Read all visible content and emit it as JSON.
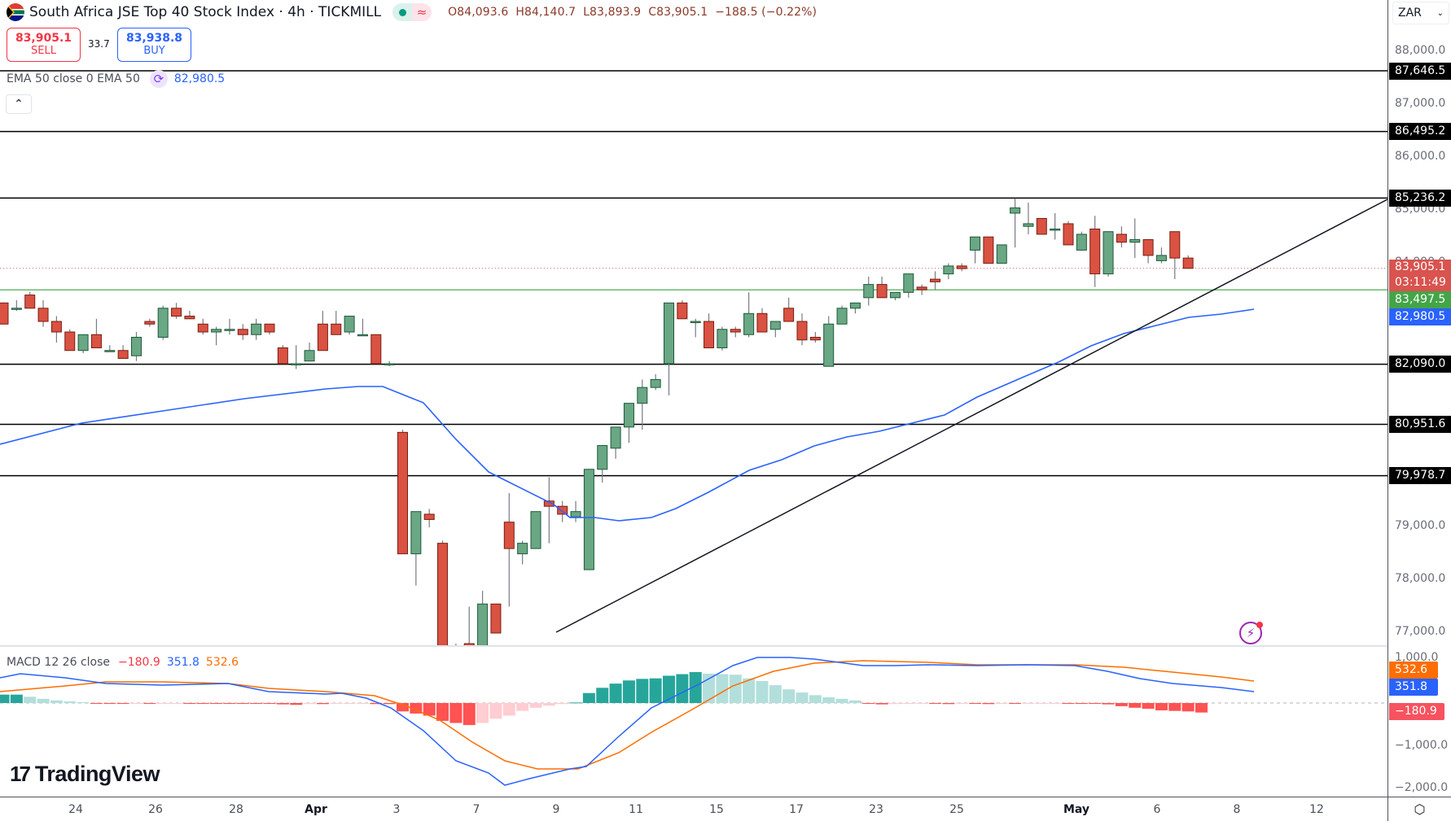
{
  "header": {
    "title": "South Africa JSE Top 40 Stock Index · 4h · TICKMILL",
    "flag_icon": "south-africa-flag-icon",
    "status_icons": [
      "market-open-dot-icon",
      "delayed-data-icon"
    ],
    "ohlc": {
      "open": "O84,093.6",
      "high": "H84,140.7",
      "low": "L83,893.9",
      "close": "C83,905.1",
      "change": "−188.5 (−0.22%)"
    }
  },
  "trade": {
    "sell_price": "83,905.1",
    "sell_label": "SELL",
    "spread": "33.7",
    "buy_price": "83,938.8",
    "buy_label": "BUY"
  },
  "ema_legend": {
    "label": "EMA 50 close 0 EMA 50",
    "icon": "refresh-cycle-icon",
    "value": "82,980.5"
  },
  "collapse_button": {
    "icon": "chevron-up-icon",
    "label": "^"
  },
  "macd_legend": {
    "label": "MACD 12 26 close",
    "histogram": "−180.9",
    "macd": "351.8",
    "signal": "532.6"
  },
  "logo": {
    "mark": "17",
    "text": "TradingView"
  },
  "price_axis": {
    "currency": "ZAR",
    "ticks": [
      "88,000.0",
      "87,000.0",
      "86,000.0",
      "85,000.0",
      "84,000.0",
      "79,000.0",
      "78,000.0",
      "77,000.0"
    ],
    "level_tags": [
      "87,646.5",
      "86,495.2",
      "85,236.2",
      "82,090.0",
      "80,951.6",
      "79,978.7"
    ],
    "last_price": "83,905.1",
    "countdown": "03:11:49",
    "green_level": "83,497.5",
    "ema_tag": "82,980.5",
    "macd_ticks": [
      "1,000.0",
      "0.0",
      "−1,000.0",
      "−2,000.0"
    ],
    "macd_signal_tag": "532.6",
    "macd_line_tag": "351.8",
    "macd_hist_tag": "−180.9"
  },
  "time_axis": {
    "labels": [
      "24",
      "26",
      "28",
      "Apr",
      "3",
      "7",
      "9",
      "11",
      "15",
      "17",
      "23",
      "25",
      "May",
      "6",
      "8",
      "12"
    ]
  },
  "colors": {
    "bull": "#6aa784",
    "bear": "#d95242",
    "ema": "#2962ff",
    "macd_line": "#2962ff",
    "signal_line": "#ff6d00",
    "hist_pos_strong": "#26a69a",
    "hist_pos_weak": "#b2dfdb",
    "hist_neg_strong": "#ff5252",
    "hist_neg_weak": "#ffcdd2"
  },
  "chart_data": {
    "type": "candlestick",
    "title": "South Africa JSE Top 40 Stock Index · 4h · TICKMILL",
    "xlabel": "",
    "ylabel": "ZAR",
    "ylim": [
      76700,
      88400
    ],
    "x_labels": [
      "24",
      "26",
      "28",
      "Apr",
      "3",
      "7",
      "9",
      "11",
      "15",
      "17",
      "23",
      "25",
      "May",
      "6",
      "8",
      "12"
    ],
    "horizontal_levels": [
      87646.5,
      86495.2,
      85236.2,
      82090.0,
      80951.6,
      79978.7
    ],
    "green_level": 83497.5,
    "last_price": 83905.1,
    "ema50_last": 82980.5,
    "trendline": {
      "from": [
        77100,
        "Apr 9"
      ],
      "to": [
        85236,
        "May 12"
      ]
    },
    "candles": [
      [
        83250,
        83260,
        83100,
        82850
      ],
      [
        83150,
        83300,
        83100,
        83150
      ],
      [
        83400,
        83460,
        83150,
        83150
      ],
      [
        83150,
        83300,
        82800,
        82900
      ],
      [
        82900,
        83000,
        82500,
        82700
      ],
      [
        82700,
        82750,
        82400,
        82350
      ],
      [
        82350,
        82500,
        82300,
        82650
      ],
      [
        82650,
        82950,
        82550,
        82400
      ],
      [
        82350,
        82450,
        82400,
        82350
      ],
      [
        82350,
        82450,
        82200,
        82200
      ],
      [
        82250,
        82700,
        82150,
        82600
      ],
      [
        82900,
        82950,
        82800,
        82850
      ],
      [
        82600,
        83200,
        82550,
        83150
      ],
      [
        83150,
        83250,
        82950,
        83000
      ],
      [
        83000,
        83100,
        82950,
        82950
      ],
      [
        82850,
        82950,
        82650,
        82700
      ],
      [
        82700,
        82800,
        82450,
        82750
      ],
      [
        82750,
        82950,
        82650,
        82750
      ],
      [
        82750,
        82850,
        82550,
        82650
      ],
      [
        82650,
        82950,
        82550,
        82850
      ],
      [
        82850,
        82850,
        82650,
        82700
      ],
      [
        82400,
        82450,
        82250,
        82100
      ],
      [
        82100,
        82450,
        82000,
        82100
      ],
      [
        82150,
        82500,
        82250,
        82350
      ],
      [
        82850,
        83100,
        82650,
        82350
      ],
      [
        82850,
        83100,
        82650,
        82650
      ],
      [
        82700,
        83000,
        82650,
        83000
      ],
      [
        82650,
        82950,
        82850,
        82650
      ],
      [
        82650,
        82600,
        82350,
        82100
      ],
      [
        82100,
        82150,
        82050,
        82100
      ],
      [
        80800,
        80850,
        78500,
        78500
      ],
      [
        78500,
        78600,
        77900,
        79300
      ],
      [
        79250,
        79350,
        79000,
        79150
      ],
      [
        78700,
        78750,
        76600,
        76600
      ],
      [
        76650,
        76800,
        76500,
        76650
      ],
      [
        76800,
        77500,
        76300,
        76600
      ],
      [
        76650,
        77800,
        77000,
        77550
      ],
      [
        77550,
        77500,
        77050,
        77000
      ],
      [
        79100,
        79650,
        77500,
        78600
      ],
      [
        78500,
        78750,
        78300,
        78700
      ],
      [
        78600,
        79300,
        78600,
        79300
      ],
      [
        79500,
        79950,
        78700,
        79400
      ],
      [
        79400,
        79500,
        79100,
        79250
      ],
      [
        79200,
        79500,
        79100,
        79300
      ],
      [
        78200,
        79750,
        78200,
        80100
      ],
      [
        80100,
        80500,
        79850,
        80550
      ],
      [
        80500,
        80900,
        80300,
        80900
      ],
      [
        80900,
        81300,
        80600,
        81350
      ],
      [
        81350,
        81800,
        80850,
        81650
      ],
      [
        81650,
        81900,
        81600,
        81800
      ],
      [
        82100,
        82100,
        81500,
        83250
      ],
      [
        83250,
        83300,
        82950,
        82950
      ],
      [
        82900,
        82950,
        82600,
        82900
      ],
      [
        82900,
        83050,
        82550,
        82400
      ],
      [
        82400,
        82800,
        82350,
        82750
      ],
      [
        82750,
        82800,
        82600,
        82700
      ],
      [
        82650,
        83450,
        82600,
        83050
      ],
      [
        83050,
        83150,
        82700,
        82700
      ],
      [
        82750,
        82900,
        82600,
        82900
      ],
      [
        83150,
        83350,
        82900,
        82900
      ],
      [
        82900,
        83050,
        82450,
        82550
      ],
      [
        82600,
        82700,
        82500,
        82550
      ],
      [
        82050,
        83000,
        82050,
        82850
      ],
      [
        82850,
        83200,
        82950,
        83150
      ],
      [
        83150,
        83250,
        83050,
        83250
      ],
      [
        83350,
        83750,
        83200,
        83600
      ],
      [
        83600,
        83750,
        83350,
        83350
      ],
      [
        83350,
        83400,
        83300,
        83450
      ],
      [
        83450,
        83800,
        83350,
        83800
      ],
      [
        83550,
        83600,
        83400,
        83500
      ],
      [
        83700,
        83850,
        83500,
        83650
      ],
      [
        83800,
        84000,
        83700,
        83950
      ],
      [
        83950,
        84000,
        83850,
        83900
      ],
      [
        84250,
        84400,
        84000,
        84500
      ],
      [
        84500,
        84500,
        84100,
        84000
      ],
      [
        84000,
        84300,
        84100,
        84350
      ],
      [
        84950,
        85230,
        84300,
        85050
      ],
      [
        84700,
        85150,
        84550,
        84750
      ],
      [
        84850,
        84850,
        84750,
        84550
      ],
      [
        84650,
        84950,
        84450,
        84650
      ],
      [
        84750,
        84800,
        84450,
        84350
      ],
      [
        84250,
        84600,
        84300,
        84550
      ],
      [
        84650,
        84900,
        83550,
        83800
      ],
      [
        83800,
        84600,
        83750,
        84600
      ],
      [
        84550,
        84700,
        84300,
        84400
      ],
      [
        84400,
        84850,
        84100,
        84450
      ],
      [
        84450,
        84450,
        84000,
        84150
      ],
      [
        84050,
        84300,
        84000,
        84150
      ],
      [
        84600,
        84550,
        83700,
        84100
      ],
      [
        84100,
        84150,
        83900,
        83905
      ]
    ],
    "macd": {
      "ylim": [
        -2100,
        1050
      ],
      "macd_last": 351.8,
      "signal_last": 532.6,
      "histogram_last": -180.9
    }
  }
}
